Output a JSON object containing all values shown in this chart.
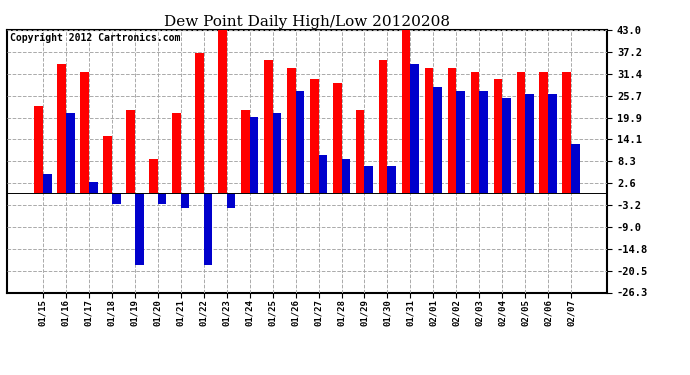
{
  "title": "Dew Point Daily High/Low 20120208",
  "copyright": "Copyright 2012 Cartronics.com",
  "dates": [
    "01/15",
    "01/16",
    "01/17",
    "01/18",
    "01/19",
    "01/20",
    "01/21",
    "01/22",
    "01/23",
    "01/24",
    "01/25",
    "01/26",
    "01/27",
    "01/28",
    "01/29",
    "01/30",
    "01/31",
    "02/01",
    "02/02",
    "02/03",
    "02/04",
    "02/05",
    "02/06",
    "02/07"
  ],
  "highs": [
    23.0,
    34.0,
    32.0,
    15.0,
    22.0,
    9.0,
    21.0,
    37.0,
    43.0,
    22.0,
    35.0,
    33.0,
    30.0,
    29.0,
    22.0,
    35.0,
    43.0,
    33.0,
    33.0,
    32.0,
    30.0,
    32.0,
    32.0,
    32.0
  ],
  "lows": [
    5.0,
    21.0,
    3.0,
    -3.0,
    -19.0,
    -3.0,
    -4.0,
    -19.0,
    -4.0,
    20.0,
    21.0,
    27.0,
    10.0,
    9.0,
    7.0,
    7.0,
    34.0,
    28.0,
    27.0,
    27.0,
    25.0,
    26.0,
    26.0,
    13.0
  ],
  "ylim_min": -26.3,
  "ylim_max": 43.0,
  "yticks": [
    43.0,
    37.2,
    31.4,
    25.7,
    19.9,
    14.1,
    8.3,
    2.6,
    -3.2,
    -9.0,
    -14.8,
    -20.5,
    -26.3
  ],
  "bar_color_high": "#ff0000",
  "bar_color_low": "#0000cc",
  "bg_color": "#ffffff",
  "grid_color": "#aaaaaa",
  "title_fontsize": 11,
  "copyright_fontsize": 7,
  "bar_width": 0.38,
  "fig_width": 6.9,
  "fig_height": 3.75,
  "dpi": 100
}
